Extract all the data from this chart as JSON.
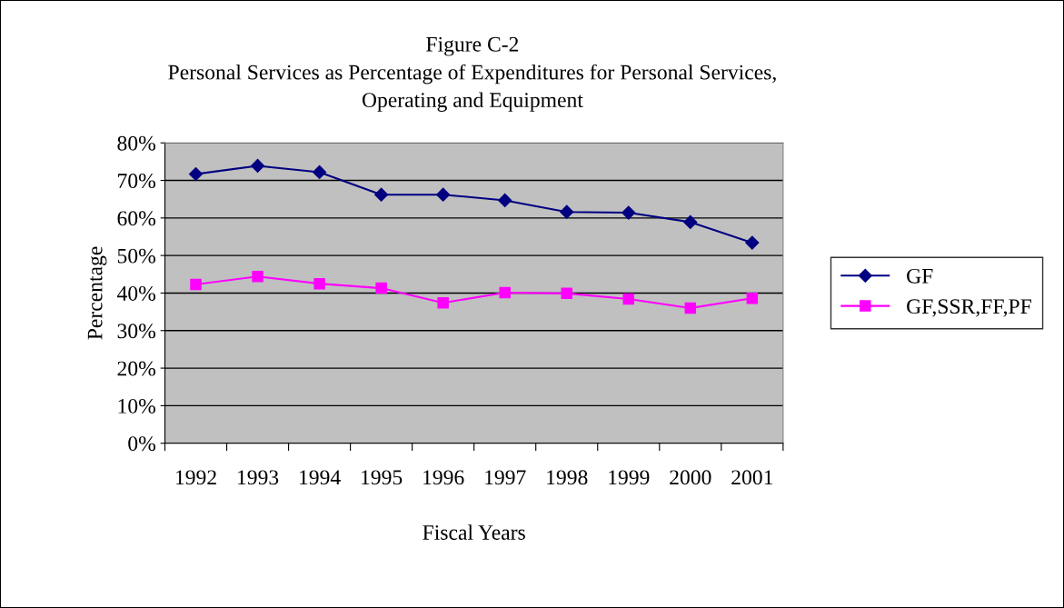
{
  "chart_data": {
    "type": "line",
    "title": "Figure C-2\nPersonal Services as Percentage of Expenditures for Personal Services,\nOperating and Equipment",
    "xlabel": "Fiscal Years",
    "ylabel": "Percentage",
    "categories": [
      "1992",
      "1993",
      "1994",
      "1995",
      "1996",
      "1997",
      "1998",
      "1999",
      "2000",
      "2001"
    ],
    "series": [
      {
        "name": "GF",
        "color": "#000080",
        "marker": "diamond",
        "values": [
          71.7,
          73.9,
          72.2,
          66.2,
          66.2,
          64.7,
          61.6,
          61.4,
          58.9,
          53.4
        ]
      },
      {
        "name": "GF,SSR,FF,PF",
        "color": "#ff00ff",
        "marker": "square",
        "values": [
          42.3,
          44.4,
          42.5,
          41.3,
          37.4,
          40.1,
          39.9,
          38.4,
          36.0,
          38.6
        ]
      }
    ],
    "ylim": [
      0,
      80
    ],
    "yticks": [
      {
        "value": 0,
        "label": "0%"
      },
      {
        "value": 10,
        "label": "10%"
      },
      {
        "value": 20,
        "label": "20%"
      },
      {
        "value": 30,
        "label": "30%"
      },
      {
        "value": 40,
        "label": "40%"
      },
      {
        "value": 50,
        "label": "50%"
      },
      {
        "value": 60,
        "label": "60%"
      },
      {
        "value": 70,
        "label": "70%"
      },
      {
        "value": 80,
        "label": "80%"
      }
    ],
    "grid": "y",
    "legend": "right",
    "line_style": "solid"
  }
}
